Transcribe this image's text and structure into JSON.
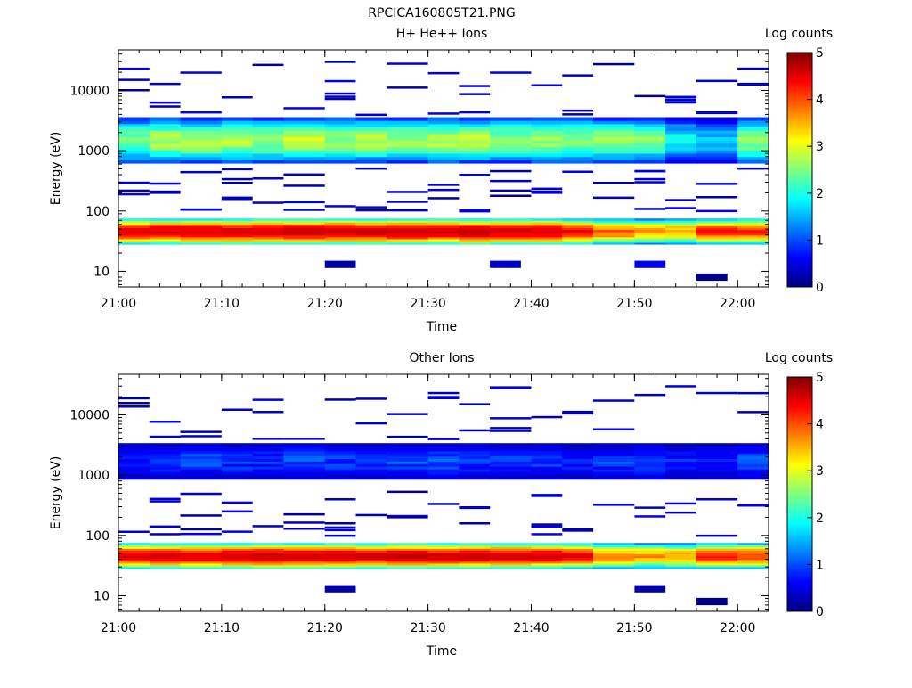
{
  "figure_title": "RPCICA160805T21.PNG",
  "chart_data": [
    {
      "type": "heatmap",
      "title": "H+ He++ Ions",
      "xlabel": "Time",
      "ylabel": "Energy (eV)",
      "x_ticks": [
        "21:00",
        "21:10",
        "21:20",
        "21:30",
        "21:40",
        "21:50",
        "22:00"
      ],
      "x_range": [
        "21:00",
        "22:03"
      ],
      "y_scale": "log",
      "y_ticks": [
        "10",
        "100",
        "1000",
        "10000"
      ],
      "y_range": [
        5.5,
        47000
      ],
      "colorbar": {
        "label": "Log counts",
        "ticks": [
          "0",
          "1",
          "2",
          "3",
          "4",
          "5"
        ],
        "range": [
          0,
          5
        ]
      },
      "colorscale": [
        "#00007f",
        "#0000ff",
        "#00ffff",
        "#ffff00",
        "#ff0000",
        "#7f0000"
      ],
      "time_steps": [
        "21:00",
        "21:03",
        "21:06",
        "21:10",
        "21:13",
        "21:16",
        "21:20",
        "21:23",
        "21:26",
        "21:30",
        "21:33",
        "21:36",
        "21:40",
        "21:43",
        "21:46",
        "21:50",
        "21:53",
        "21:56",
        "22:00"
      ],
      "bands": [
        {
          "name": "upper",
          "e_min": 620,
          "e_max": 3600,
          "levels": [
            2.5,
            2.7,
            2.7,
            2.7,
            2.6,
            2.8,
            2.6,
            2.7,
            2.6,
            2.7,
            2.7,
            2.6,
            2.6,
            2.6,
            2.6,
            2.5,
            2.0,
            1.8,
            2.6
          ]
        },
        {
          "name": "lower",
          "e_min": 28,
          "e_max": 75,
          "levels": [
            4.2,
            4.3,
            4.3,
            4.3,
            4.4,
            4.4,
            4.4,
            4.3,
            4.4,
            4.3,
            4.4,
            4.3,
            4.3,
            4.1,
            3.6,
            3.4,
            3.4,
            3.9,
            3.8
          ]
        }
      ],
      "isolated_cells": [
        {
          "t": "21:20",
          "e": 13,
          "v": 0.3
        },
        {
          "t": "21:36",
          "e": 13,
          "v": 0.6
        },
        {
          "t": "21:50",
          "e": 13,
          "v": 0.9
        },
        {
          "t": "21:56",
          "e": 8,
          "v": 0.1
        }
      ]
    },
    {
      "type": "heatmap",
      "title": "Other Ions",
      "xlabel": "Time",
      "ylabel": "Energy (eV)",
      "x_ticks": [
        "21:00",
        "21:10",
        "21:20",
        "21:30",
        "21:40",
        "21:50",
        "22:00"
      ],
      "x_range": [
        "21:00",
        "22:03"
      ],
      "y_scale": "log",
      "y_ticks": [
        "10",
        "100",
        "1000",
        "10000"
      ],
      "y_range": [
        5.5,
        47000
      ],
      "colorbar": {
        "label": "Log counts",
        "ticks": [
          "0",
          "1",
          "2",
          "3",
          "4",
          "5"
        ],
        "range": [
          0,
          5
        ]
      },
      "colorscale": [
        "#00007f",
        "#0000ff",
        "#00ffff",
        "#ffff00",
        "#ff0000",
        "#7f0000"
      ],
      "time_steps": [
        "21:00",
        "21:03",
        "21:06",
        "21:10",
        "21:13",
        "21:16",
        "21:20",
        "21:23",
        "21:26",
        "21:30",
        "21:33",
        "21:36",
        "21:40",
        "21:43",
        "21:46",
        "21:50",
        "21:53",
        "21:56",
        "22:00"
      ],
      "bands": [
        {
          "name": "upper",
          "e_min": 850,
          "e_max": 3400,
          "levels": [
            1.1,
            1.2,
            1.3,
            1.2,
            1.2,
            1.3,
            1.2,
            1.2,
            1.3,
            1.3,
            1.2,
            1.2,
            1.2,
            1.1,
            1.2,
            1.3,
            1.1,
            1.0,
            1.3
          ]
        },
        {
          "name": "lower",
          "e_min": 28,
          "e_max": 75,
          "levels": [
            4.2,
            4.3,
            4.3,
            4.3,
            4.4,
            4.4,
            4.4,
            4.3,
            4.4,
            4.3,
            4.4,
            4.3,
            4.3,
            4.1,
            3.6,
            3.4,
            3.4,
            3.9,
            3.8
          ]
        }
      ],
      "isolated_cells": [
        {
          "t": "21:20",
          "e": 13,
          "v": 0.3
        },
        {
          "t": "21:50",
          "e": 13,
          "v": 0.3
        },
        {
          "t": "21:56",
          "e": 8,
          "v": 0.1
        }
      ]
    }
  ]
}
